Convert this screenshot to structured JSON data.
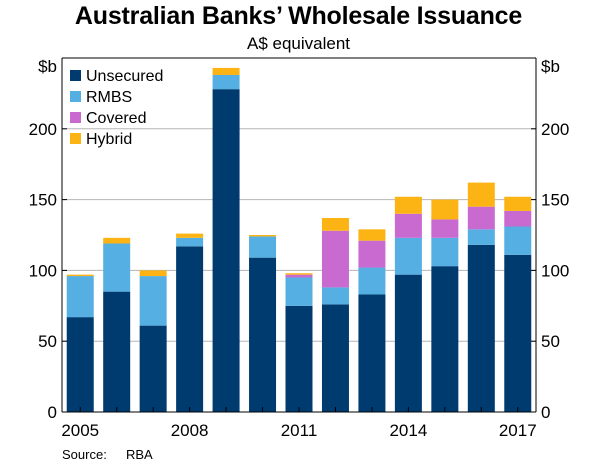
{
  "title": "Australian Banks’ Wholesale Issuance",
  "subtitle": "A$ equivalent",
  "source_label": "Source:",
  "source_value": "RBA",
  "colors": {
    "unsecured": "#003b70",
    "rmbs": "#55afe3",
    "covered": "#c86ad0",
    "hybrid": "#fbb414"
  },
  "chart_data": {
    "type": "bar",
    "stacked": true,
    "categories": [
      "2005",
      "2006",
      "2007",
      "2008",
      "2009",
      "2010",
      "2011",
      "2012",
      "2013",
      "2014",
      "2015",
      "2016",
      "2017"
    ],
    "series": [
      {
        "name": "Unsecured",
        "color": "#003b70",
        "values": [
          67,
          85,
          61,
          117,
          228,
          109,
          75,
          76,
          83,
          97,
          103,
          118,
          111
        ]
      },
      {
        "name": "RMBS",
        "color": "#55afe3",
        "values": [
          29,
          34,
          35,
          6,
          10,
          15,
          20,
          12,
          19,
          26,
          20,
          11,
          20
        ]
      },
      {
        "name": "Covered",
        "color": "#c86ad0",
        "values": [
          0,
          0,
          0,
          0,
          0,
          0,
          2,
          40,
          19,
          17,
          13,
          16,
          11
        ]
      },
      {
        "name": "Hybrid",
        "color": "#fbb414",
        "values": [
          1,
          4,
          4,
          3,
          5,
          1,
          1,
          9,
          8,
          12,
          14,
          17,
          10
        ]
      }
    ],
    "ylabel_left": "$b",
    "ylabel_right": "$b",
    "ylim": [
      0,
      250
    ],
    "yticks": [
      0,
      50,
      100,
      150,
      200
    ],
    "xtick_labels": [
      "2005",
      "2008",
      "2011",
      "2014",
      "2017"
    ],
    "grid": true,
    "legend_position": "top-left"
  }
}
